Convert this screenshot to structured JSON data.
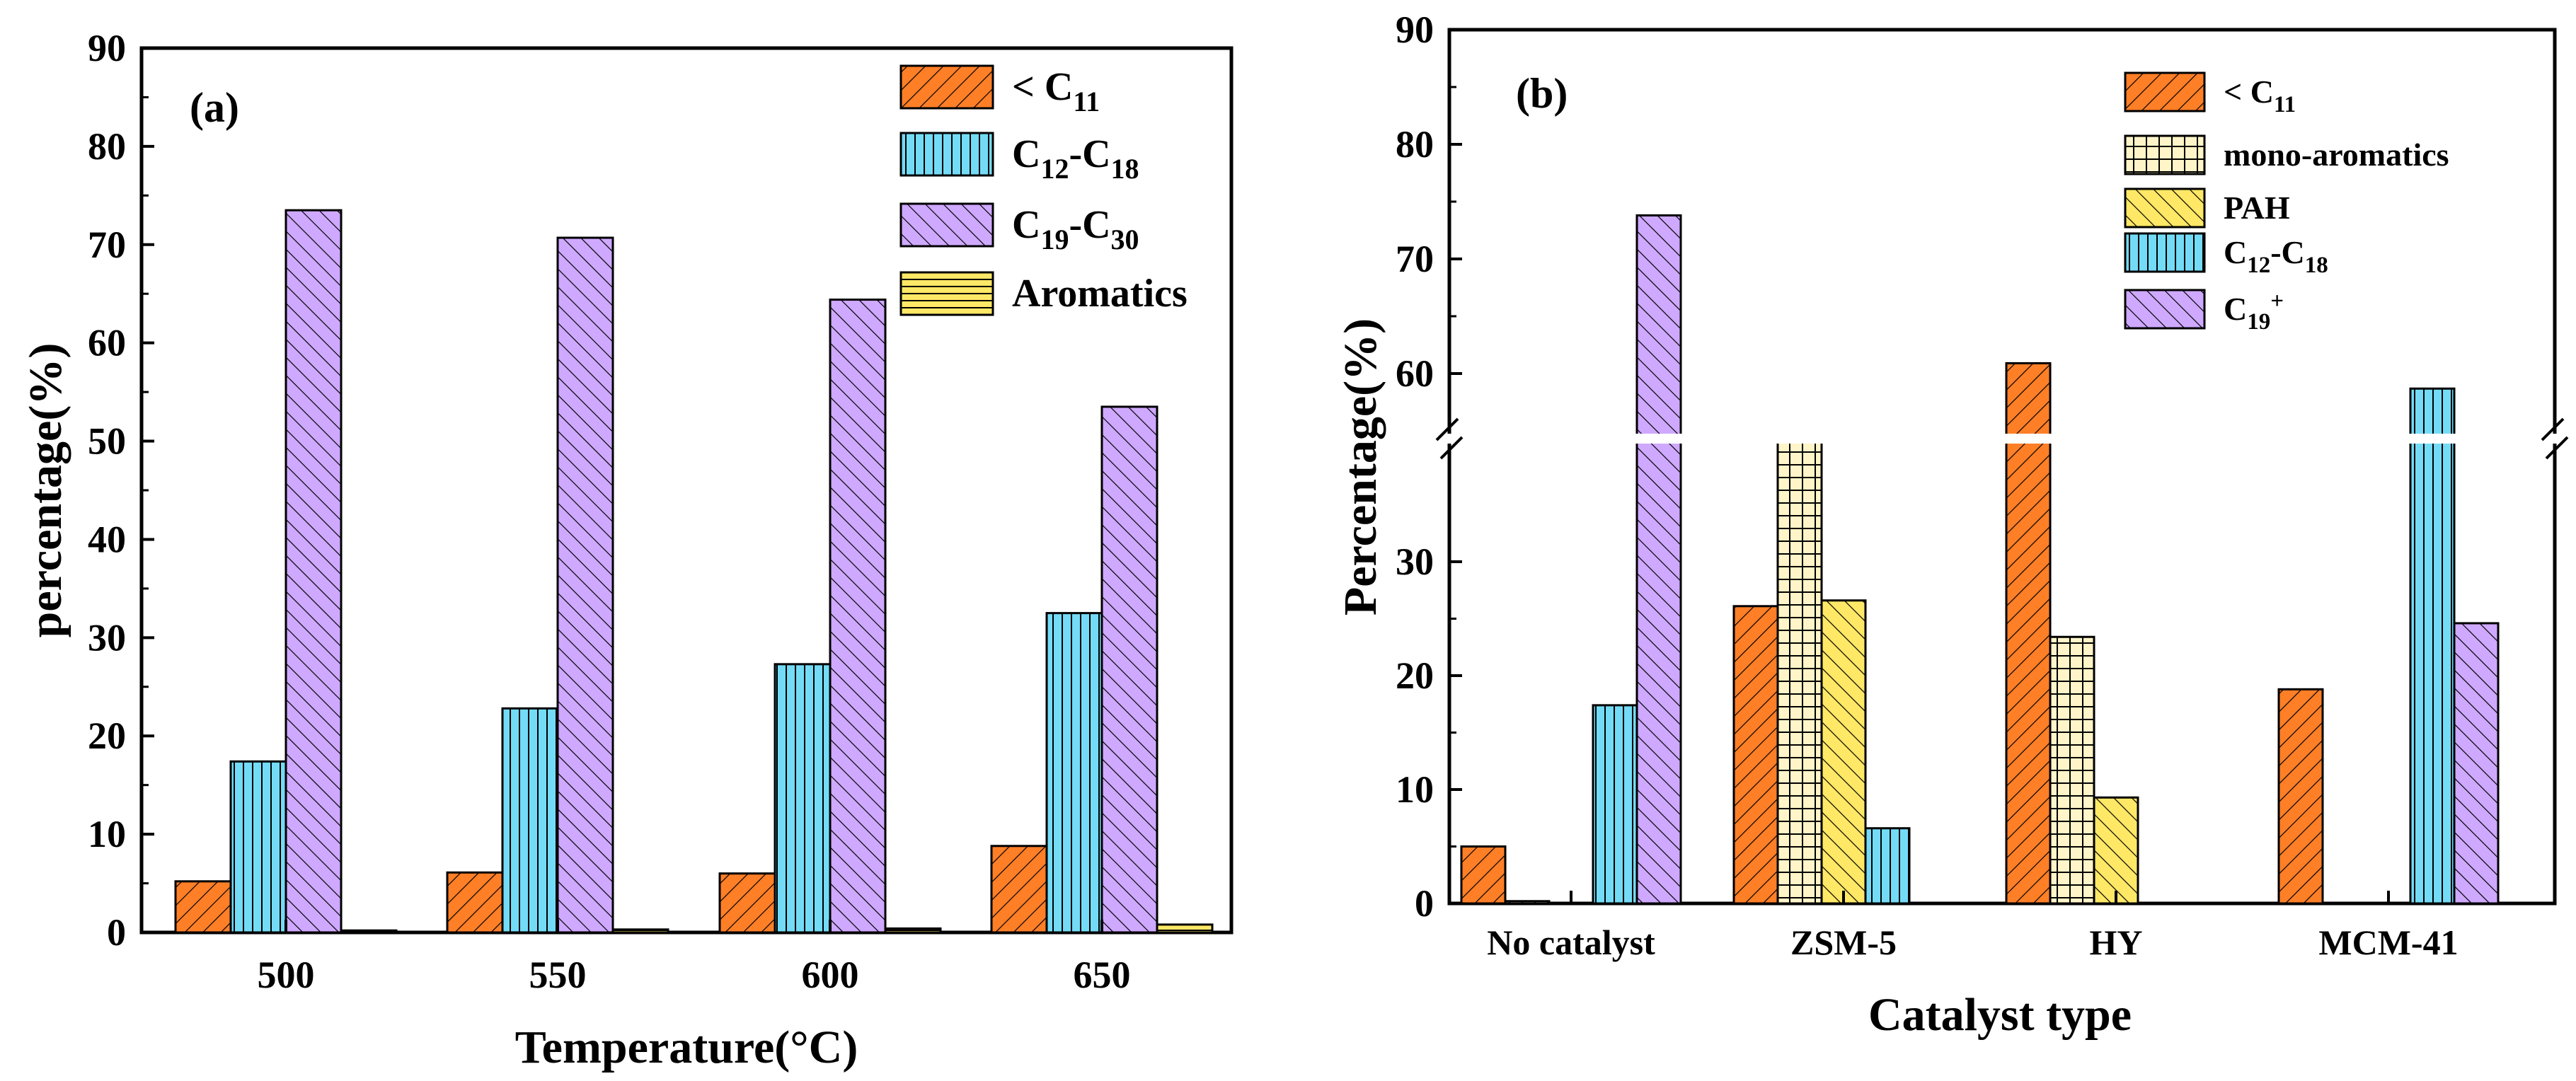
{
  "colors": {
    "lt_c11": "#ff7f27",
    "c12_c18": "#74dbf6",
    "c19": "#cfa9ff",
    "aromatics": "#ffe866",
    "mono_aromatics": "#fff5c8",
    "pah": "#ffe866"
  },
  "chart_data": [
    {
      "type": "bar",
      "panel_label": "(a)",
      "xlabel": "Temperature(°C)",
      "ylabel": "percentage(%)",
      "ylim": [
        0,
        90
      ],
      "yticks": [
        "0",
        "10",
        "20",
        "30",
        "40",
        "50",
        "60",
        "70",
        "80",
        "90"
      ],
      "categories": [
        "500",
        "550",
        "600",
        "650"
      ],
      "legend_position": "top-right",
      "series": [
        {
          "name": "< C11",
          "legend_base": "< C",
          "legend_sub": "11",
          "values": [
            5.2,
            6.1,
            6.0,
            8.8
          ]
        },
        {
          "name": "C12-C18",
          "legend_base": "C",
          "legend_sub": "12",
          "legend_mid": "-C",
          "legend_sub2": "18",
          "values": [
            17.4,
            22.8,
            27.3,
            32.5
          ]
        },
        {
          "name": "C19-C30",
          "legend_base": "C",
          "legend_sub": "19",
          "legend_mid": "-C",
          "legend_sub2": "30",
          "values": [
            73.5,
            70.7,
            64.4,
            53.5
          ]
        },
        {
          "name": "Aromatics",
          "legend_base": "Aromatics",
          "values": [
            0.2,
            0.3,
            0.4,
            0.8
          ]
        }
      ]
    },
    {
      "type": "bar",
      "panel_label": "(b)",
      "xlabel": "Catalyst type",
      "ylabel": "Percentage(%)",
      "broken_axis": true,
      "ylim": [
        0,
        90
      ],
      "yticks_lower": [
        "0",
        "10",
        "20",
        "30"
      ],
      "yticks_upper": [
        "60",
        "70",
        "80",
        "90"
      ],
      "categories": [
        "No catalyst",
        "ZSM-5",
        "HY",
        "MCM-41"
      ],
      "legend_position": "top-right",
      "series": [
        {
          "name": "< C11",
          "legend_base": "< C",
          "legend_sub": "11",
          "values": [
            5.0,
            26.1,
            60.9,
            18.8
          ]
        },
        {
          "name": "mono-aromatics",
          "legend_base": "mono-aromatics",
          "values": [
            0.2,
            49.5,
            23.4,
            0
          ]
        },
        {
          "name": "PAH",
          "legend_base": "PAH",
          "values": [
            0,
            26.6,
            9.3,
            0
          ]
        },
        {
          "name": "C12-C18",
          "legend_base": "C",
          "legend_sub": "12",
          "legend_mid": "-C",
          "legend_sub2": "18",
          "values": [
            17.4,
            6.6,
            0,
            57.6
          ]
        },
        {
          "name": "C19+",
          "legend_base": "C",
          "legend_sub": "19",
          "legend_sup": "+",
          "values": [
            73.8,
            0,
            0,
            24.6
          ]
        }
      ]
    }
  ]
}
